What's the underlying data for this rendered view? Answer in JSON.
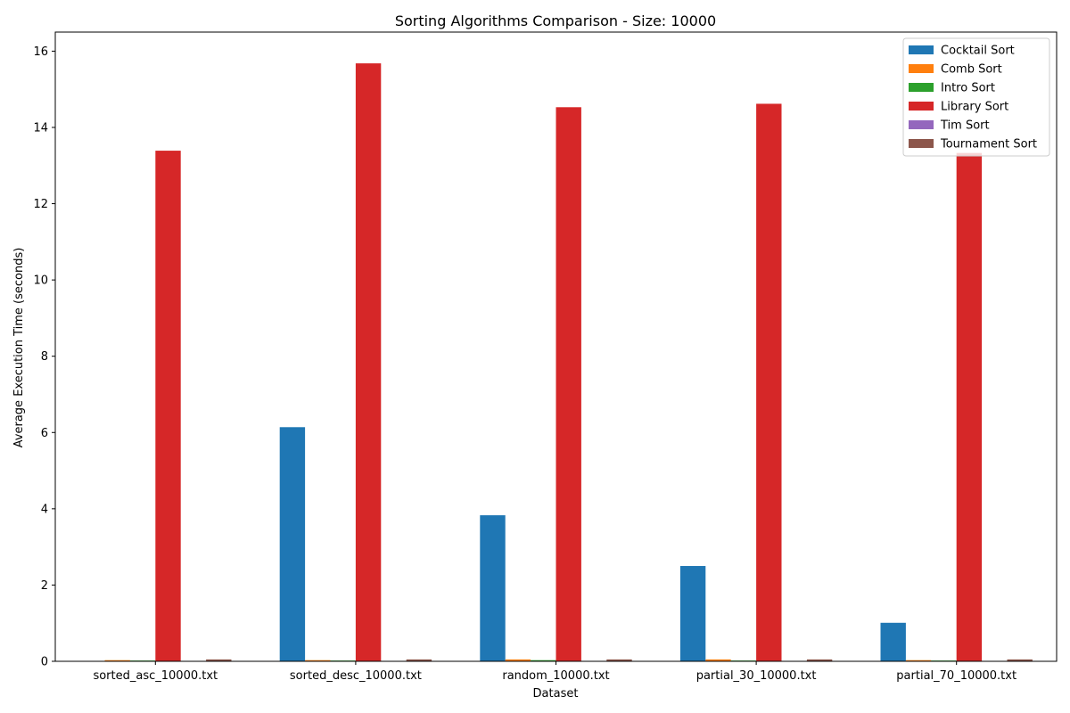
{
  "chart_data": {
    "type": "bar",
    "title": "Sorting Algorithms Comparison - Size: 10000",
    "xlabel": "Dataset",
    "ylabel": "Average Execution Time (seconds)",
    "ylim": [
      0,
      16.5
    ],
    "yticks": [
      0,
      2,
      4,
      6,
      8,
      10,
      12,
      14,
      16
    ],
    "grid": false,
    "legend_position": "top-right",
    "categories": [
      "sorted_asc_10000.txt",
      "sorted_desc_10000.txt",
      "random_10000.txt",
      "partial_30_10000.txt",
      "partial_70_10000.txt"
    ],
    "series": [
      {
        "name": "Cocktail Sort",
        "color": "#1f77b4",
        "values": [
          0.002,
          6.14,
          3.83,
          2.5,
          1.01
        ]
      },
      {
        "name": "Comb Sort",
        "color": "#ff7f0e",
        "values": [
          0.03,
          0.03,
          0.05,
          0.05,
          0.03
        ]
      },
      {
        "name": "Intro Sort",
        "color": "#2ca02c",
        "values": [
          0.02,
          0.02,
          0.03,
          0.02,
          0.02
        ]
      },
      {
        "name": "Library Sort",
        "color": "#d62728",
        "values": [
          13.39,
          15.68,
          14.53,
          14.62,
          13.33
        ]
      },
      {
        "name": "Tim Sort",
        "color": "#9467bd",
        "values": [
          0.003,
          0.005,
          0.01,
          0.005,
          0.004
        ]
      },
      {
        "name": "Tournament Sort",
        "color": "#8c564b",
        "values": [
          0.05,
          0.05,
          0.05,
          0.05,
          0.05
        ]
      }
    ]
  }
}
